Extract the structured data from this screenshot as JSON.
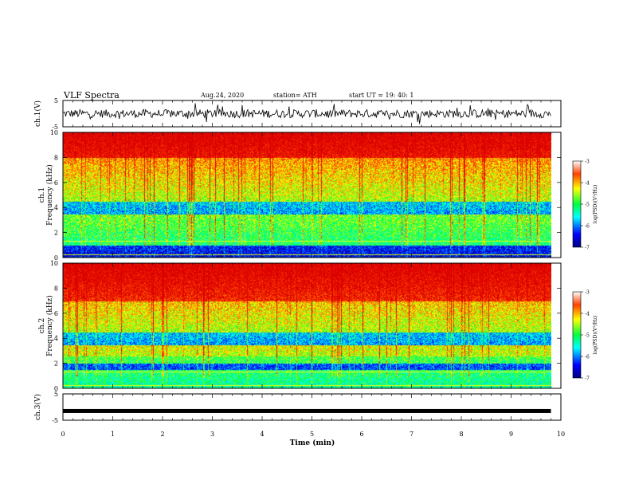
{
  "header": {
    "title": "VLF Spectra",
    "date": "Aug.24, 2020",
    "station": "station= ATH",
    "start": "start  UT =   19: 40: 1"
  },
  "chart_data": [
    {
      "type": "line",
      "name": "waveform-ch1",
      "ylabel": "ch.1(V)",
      "ylim": [
        -5,
        5
      ],
      "y_ticks": [
        "5",
        "-5"
      ],
      "x_range_min": [
        0,
        9.8
      ]
    },
    {
      "type": "heatmap",
      "name": "spectrogram-ch1",
      "ylabel": "ch.1\nFrequency (kHz)",
      "ylabel_lines": [
        "ch.1",
        "Frequency (kHz)"
      ],
      "ylim": [
        0,
        10
      ],
      "y_ticks": [
        "0",
        "2",
        "4",
        "6",
        "8",
        "10"
      ],
      "colorbar": {
        "label": "log(PSD)(V²/Hz)",
        "min": -7,
        "max": -3,
        "ticks": [
          "-3",
          "-4",
          "-5",
          "-6",
          "-7"
        ]
      },
      "features": [
        {
          "band_khz": [
            3.5,
            4.5
          ],
          "level": "low"
        },
        {
          "band_khz": [
            0,
            1
          ],
          "level": "low"
        },
        {
          "band_khz": [
            8,
            10
          ],
          "level": "high"
        }
      ]
    },
    {
      "type": "heatmap",
      "name": "spectrogram-ch2",
      "ylabel": "ch.2\nFrequency (kHz)",
      "ylabel_lines": [
        "ch.2",
        "Frequency (kHz)"
      ],
      "ylim": [
        0,
        10
      ],
      "y_ticks": [
        "0",
        "2",
        "4",
        "6",
        "8",
        "10"
      ],
      "colorbar": {
        "label": "log(PSD)(V²/Hz)",
        "min": -7,
        "max": -3,
        "ticks": [
          "-3",
          "-4",
          "-5",
          "-6",
          "-7"
        ]
      },
      "features": [
        {
          "band_khz": [
            3.5,
            4.5
          ],
          "level": "low"
        },
        {
          "band_khz": [
            1.5,
            2.0
          ],
          "level": "low"
        },
        {
          "band_khz": [
            7,
            10
          ],
          "level": "high"
        }
      ]
    },
    {
      "type": "line",
      "name": "waveform-ch3",
      "ylabel": "ch.3(V)",
      "ylim": [
        -5,
        5
      ],
      "y_ticks": [
        "5",
        "-5"
      ],
      "constant_value_v": -1.5
    }
  ],
  "x_axis": {
    "label": "Time  (min)",
    "range": [
      0,
      10
    ],
    "ticks": [
      "0",
      "1",
      "2",
      "3",
      "4",
      "5",
      "6",
      "7",
      "8",
      "9",
      "10"
    ],
    "data_end_min": 9.8
  }
}
